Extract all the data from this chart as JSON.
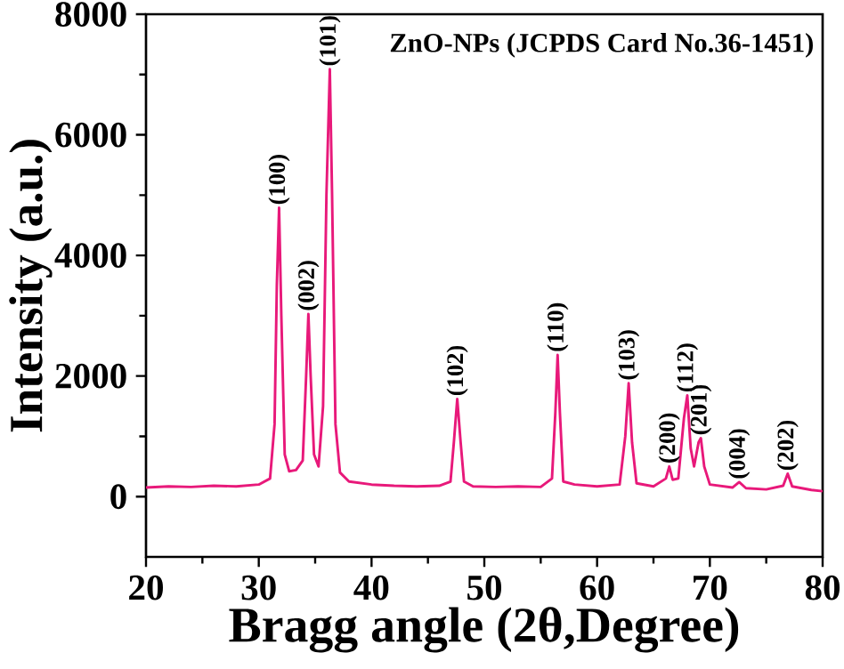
{
  "chart_data": {
    "type": "line",
    "title": "ZnO-NPs (JCPDS Card No.36-1451)",
    "xlabel": "Bragg angle (2θ,Degree)",
    "ylabel": "Intensity (a.u.)",
    "xlim": [
      20,
      80
    ],
    "ylim": [
      -1000,
      8000
    ],
    "xticks": [
      20,
      30,
      40,
      50,
      60,
      70,
      80
    ],
    "yticks": [
      0,
      2000,
      4000,
      6000,
      8000
    ],
    "grid": false,
    "marker": "none",
    "line_style": "solid",
    "series": [
      {
        "color": "#e8197a",
        "x": [
          20,
          22,
          24,
          26,
          28,
          30,
          31.0,
          31.4,
          31.6,
          31.8,
          32.0,
          32.3,
          32.7,
          33.3,
          33.9,
          34.2,
          34.4,
          34.6,
          34.9,
          35.3,
          35.7,
          36.0,
          36.3,
          36.5,
          36.8,
          37.2,
          38,
          40,
          42,
          44,
          46,
          47.0,
          47.3,
          47.6,
          47.9,
          48.2,
          49,
          51,
          53,
          55,
          56.0,
          56.3,
          56.5,
          56.7,
          57.0,
          58,
          60,
          62.0,
          62.5,
          62.8,
          63.1,
          63.5,
          65,
          66.1,
          66.4,
          66.7,
          67.2,
          67.7,
          68.0,
          68.3,
          68.6,
          69.0,
          69.2,
          69.5,
          70,
          72,
          72.6,
          73.2,
          75,
          76.5,
          76.9,
          77.3,
          79,
          80
        ],
        "values": [
          150,
          170,
          160,
          180,
          170,
          200,
          300,
          1200,
          3500,
          4790,
          3000,
          700,
          420,
          440,
          600,
          2000,
          3030,
          2000,
          700,
          500,
          1500,
          5000,
          7090,
          5000,
          1200,
          400,
          250,
          200,
          180,
          170,
          180,
          250,
          900,
          1620,
          900,
          250,
          170,
          160,
          170,
          160,
          300,
          1400,
          2350,
          1400,
          250,
          200,
          170,
          200,
          1000,
          1880,
          900,
          220,
          170,
          300,
          500,
          280,
          300,
          1300,
          1680,
          800,
          500,
          900,
          970,
          500,
          200,
          150,
          240,
          140,
          120,
          180,
          380,
          170,
          110,
          90
        ]
      }
    ],
    "annotations": [
      {
        "text": "(100)",
        "x": 31.8,
        "y": 4790
      },
      {
        "text": "(002)",
        "x": 34.4,
        "y": 3030
      },
      {
        "text": "(101)",
        "x": 36.3,
        "y": 7090
      },
      {
        "text": "(102)",
        "x": 47.6,
        "y": 1620
      },
      {
        "text": "(110)",
        "x": 56.5,
        "y": 2350
      },
      {
        "text": "(103)",
        "x": 62.8,
        "y": 1880
      },
      {
        "text": "(200)",
        "x": 66.4,
        "y": 500
      },
      {
        "text": "(112)",
        "x": 68.0,
        "y": 1680
      },
      {
        "text": "(201)",
        "x": 69.2,
        "y": 970
      },
      {
        "text": "(004)",
        "x": 72.6,
        "y": 240
      },
      {
        "text": "(202)",
        "x": 76.9,
        "y": 380
      }
    ]
  }
}
